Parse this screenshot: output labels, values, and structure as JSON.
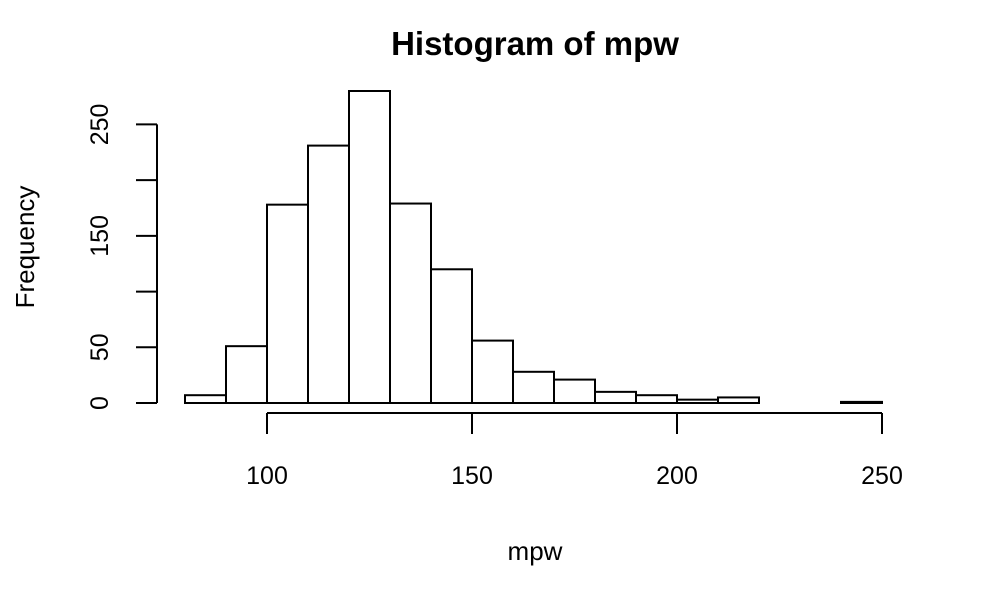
{
  "chart_data": {
    "type": "bar",
    "title": "Histogram of mpw",
    "xlabel": "mpw",
    "ylabel": "Frequency",
    "bin_edges": [
      80,
      90,
      100,
      110,
      120,
      130,
      140,
      150,
      160,
      170,
      180,
      190,
      200,
      210,
      220,
      230,
      240,
      250
    ],
    "values": [
      7,
      51,
      178,
      231,
      280,
      179,
      120,
      56,
      28,
      21,
      10,
      7,
      3,
      5,
      0,
      0,
      1
    ],
    "xticks": [
      100,
      150,
      200,
      250
    ],
    "yticks": [
      0,
      50,
      150,
      250
    ],
    "xlim": [
      80,
      250
    ],
    "ylim": [
      0,
      280
    ],
    "grid": false,
    "legend": "none"
  }
}
